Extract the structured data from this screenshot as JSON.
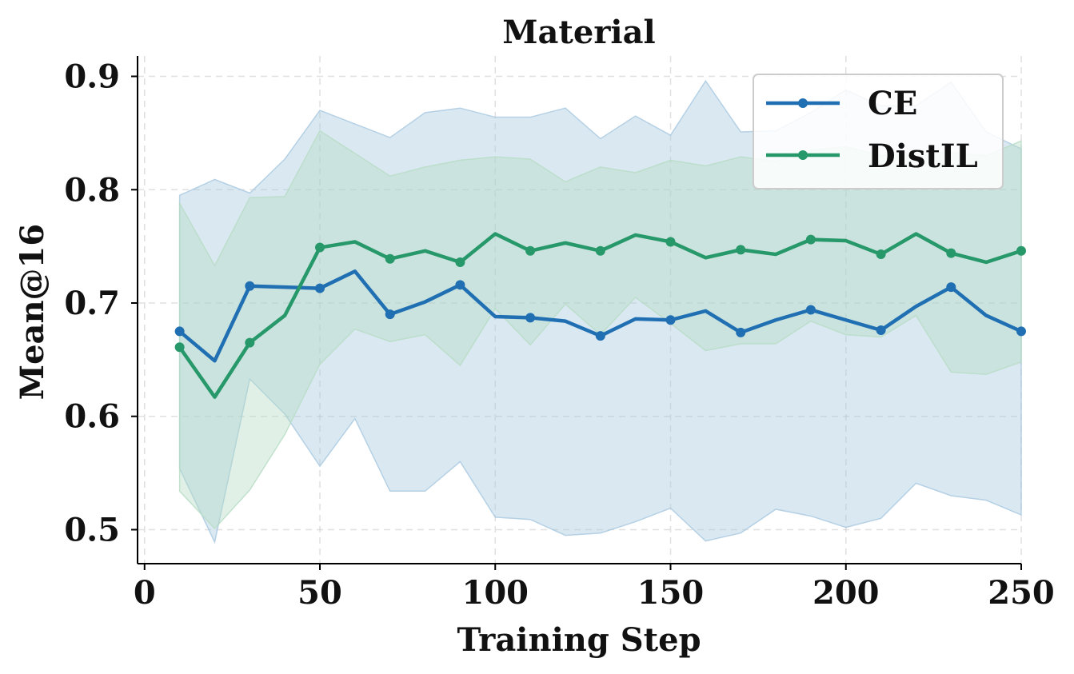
{
  "chart_data": {
    "type": "line",
    "title": "Material",
    "xlabel": "Training Step",
    "ylabel": "Mean@16",
    "xlim": [
      -2,
      250
    ],
    "ylim": [
      0.47,
      0.918
    ],
    "xticks": [
      0,
      50,
      100,
      150,
      200,
      250
    ],
    "yticks": [
      0.5,
      0.6,
      0.7,
      0.8,
      0.9
    ],
    "xtick_labels": [
      "0",
      "50",
      "100",
      "150",
      "200",
      "250"
    ],
    "ytick_labels": [
      "0.5",
      "0.6",
      "0.7",
      "0.8",
      "0.9"
    ],
    "grid": true,
    "legend_position": "top-right",
    "series": [
      {
        "name": "CE",
        "color": "#1f6fb2",
        "band_color": "#a8c8e0",
        "x": [
          10,
          20,
          30,
          40,
          50,
          60,
          70,
          80,
          90,
          100,
          110,
          120,
          130,
          140,
          150,
          160,
          170,
          180,
          190,
          200,
          210,
          220,
          230,
          240,
          250
        ],
        "y": [
          0.675,
          0.649,
          0.715,
          0.714,
          0.713,
          0.728,
          0.69,
          0.701,
          0.716,
          0.688,
          0.687,
          0.684,
          0.671,
          0.686,
          0.685,
          0.693,
          0.674,
          0.685,
          0.694,
          0.685,
          0.676,
          0.697,
          0.714,
          0.689,
          0.675
        ],
        "upper": [
          0.795,
          0.809,
          0.797,
          0.827,
          0.87,
          0.858,
          0.846,
          0.868,
          0.872,
          0.864,
          0.864,
          0.872,
          0.845,
          0.865,
          0.848,
          0.896,
          0.851,
          0.852,
          0.868,
          0.888,
          0.874,
          0.874,
          0.895,
          0.851,
          0.836
        ],
        "lower": [
          0.554,
          0.489,
          0.633,
          0.602,
          0.556,
          0.598,
          0.534,
          0.534,
          0.56,
          0.511,
          0.509,
          0.495,
          0.497,
          0.507,
          0.519,
          0.49,
          0.497,
          0.518,
          0.512,
          0.502,
          0.51,
          0.541,
          0.53,
          0.526,
          0.513
        ]
      },
      {
        "name": "DistIL",
        "color": "#26986a",
        "band_color": "#b6dcc4",
        "x": [
          10,
          20,
          30,
          40,
          50,
          60,
          70,
          80,
          90,
          100,
          110,
          120,
          130,
          140,
          150,
          160,
          170,
          180,
          190,
          200,
          210,
          220,
          230,
          240,
          250
        ],
        "y": [
          0.661,
          0.617,
          0.665,
          0.689,
          0.749,
          0.754,
          0.739,
          0.746,
          0.736,
          0.761,
          0.746,
          0.753,
          0.746,
          0.76,
          0.754,
          0.74,
          0.747,
          0.743,
          0.756,
          0.755,
          0.743,
          0.761,
          0.744,
          0.736,
          0.746
        ],
        "upper": [
          0.788,
          0.733,
          0.793,
          0.794,
          0.852,
          0.832,
          0.812,
          0.82,
          0.826,
          0.829,
          0.827,
          0.807,
          0.82,
          0.815,
          0.826,
          0.821,
          0.829,
          0.825,
          0.835,
          0.838,
          0.83,
          0.833,
          0.833,
          0.83,
          0.843
        ],
        "lower": [
          0.534,
          0.501,
          0.535,
          0.584,
          0.646,
          0.677,
          0.666,
          0.672,
          0.645,
          0.695,
          0.663,
          0.699,
          0.672,
          0.705,
          0.682,
          0.658,
          0.664,
          0.664,
          0.684,
          0.672,
          0.67,
          0.689,
          0.639,
          0.637,
          0.648
        ]
      }
    ]
  }
}
